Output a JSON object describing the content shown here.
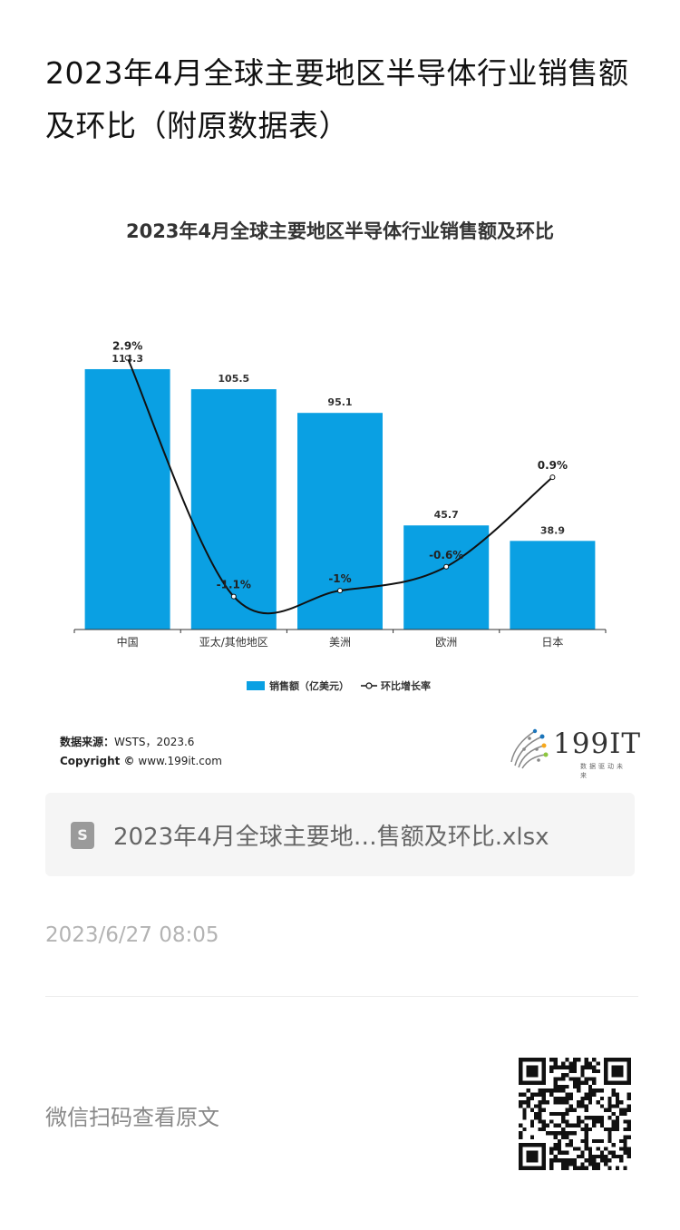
{
  "article": {
    "title": "2023年4月全球主要地区半导体行业销售额及环比（附原数据表）",
    "timestamp": "2023/6/27 08:05",
    "wechat_hint": "微信扫码查看原文"
  },
  "attachment": {
    "file_name": "2023年4月全球主要地…售额及环比.xlsx",
    "icon": "document-icon",
    "icon_letter": "S"
  },
  "source": {
    "label": "数据来源：",
    "value": "WSTS，2023.6",
    "copyright_label": "Copyright ©",
    "copyright_value": "www.199it.com"
  },
  "logo": {
    "text": "199IT",
    "tagline": "数据驱动未来"
  },
  "chart_data": {
    "type": "bar",
    "title": "2023年4月全球主要地区半导体行业销售额及环比",
    "categories": [
      "中国",
      "亚太/其他地区",
      "美洲",
      "欧洲",
      "日本"
    ],
    "series": [
      {
        "name": "销售额（亿美元）",
        "type": "bar",
        "values": [
          114.3,
          105.5,
          95.1,
          45.7,
          38.9
        ],
        "labels": [
          "114.3",
          "105.5",
          "95.1",
          "45.7",
          "38.9"
        ],
        "color": "#0aa0e3"
      },
      {
        "name": "环比增长率",
        "type": "line",
        "values": [
          2.9,
          -1.1,
          -1.0,
          -0.6,
          0.9
        ],
        "labels": [
          "2.9%",
          "-1.1%",
          "-1%",
          "-0.6%",
          "0.9%"
        ],
        "color": "#111111"
      }
    ],
    "ylim_bar": [
      0,
      135
    ],
    "ylim_line": [
      -1.5,
      3.5
    ],
    "grid": false,
    "legend_position": "bottom"
  }
}
